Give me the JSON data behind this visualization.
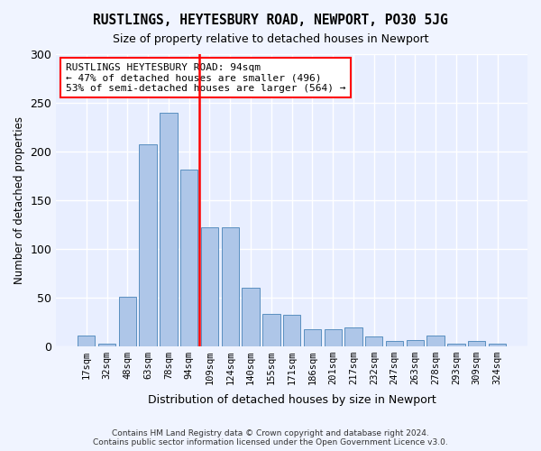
{
  "title": "RUSTLINGS, HEYTESBURY ROAD, NEWPORT, PO30 5JG",
  "subtitle": "Size of property relative to detached houses in Newport",
  "xlabel": "Distribution of detached houses by size in Newport",
  "ylabel": "Number of detached properties",
  "bar_color": "#aec6e8",
  "bar_edge_color": "#5a8fc0",
  "background_color": "#e8eeff",
  "grid_color": "#ffffff",
  "categories": [
    "17sqm",
    "32sqm",
    "48sqm",
    "63sqm",
    "78sqm",
    "94sqm",
    "109sqm",
    "124sqm",
    "140sqm",
    "155sqm",
    "171sqm",
    "186sqm",
    "201sqm",
    "217sqm",
    "232sqm",
    "247sqm",
    "263sqm",
    "278sqm",
    "293sqm",
    "309sqm",
    "324sqm"
  ],
  "values": [
    11,
    2,
    51,
    207,
    240,
    181,
    122,
    122,
    60,
    33,
    32,
    17,
    17,
    19,
    10,
    5,
    6,
    11,
    2,
    5,
    2
  ],
  "red_line_index": 5,
  "annotation_text": "RUSTLINGS HEYTESBURY ROAD: 94sqm\n← 47% of detached houses are smaller (496)\n53% of semi-detached houses are larger (564) →",
  "ylim": [
    0,
    300
  ],
  "yticks": [
    0,
    50,
    100,
    150,
    200,
    250,
    300
  ],
  "footer_line1": "Contains HM Land Registry data © Crown copyright and database right 2024.",
  "footer_line2": "Contains public sector information licensed under the Open Government Licence v3.0."
}
